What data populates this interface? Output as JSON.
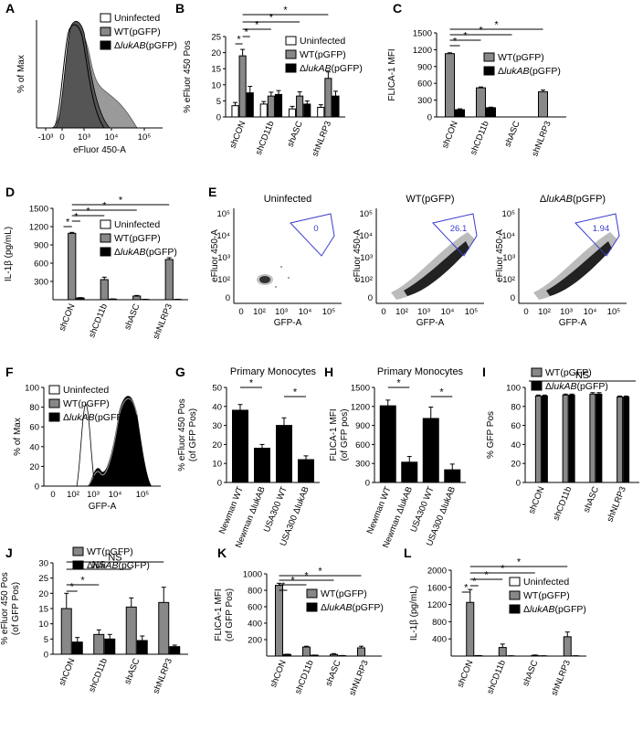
{
  "chart_data": [
    {
      "id": "A",
      "type": "area",
      "panel_label": "A",
      "xlabel": "eFluor 450-A",
      "ylabel": "% of Max",
      "x_ticks": [
        "-10³",
        "0",
        "10³",
        "10⁴",
        "10⁵"
      ],
      "series": [
        {
          "name": "Uninfected",
          "color": "#ffffff"
        },
        {
          "name": "WT(pGFP)",
          "color": "#888888"
        },
        {
          "name": "ΔlukAB(pGFP)",
          "color": "#000000"
        }
      ]
    },
    {
      "id": "B",
      "type": "bar",
      "panel_label": "B",
      "ylabel": "% eFluor 450 Pos",
      "ylim": [
        0,
        25
      ],
      "y_ticks": [
        0,
        5,
        10,
        15,
        20,
        25
      ],
      "categories": [
        "shCON",
        "shCD11b",
        "shASC",
        "shNLRP3"
      ],
      "series": [
        {
          "name": "Uninfected",
          "color": "#ffffff",
          "values": [
            3.5,
            4,
            2.5,
            3
          ],
          "err": [
            1,
            0.8,
            0.8,
            0.8
          ]
        },
        {
          "name": "WT(pGFP)",
          "color": "#888888",
          "values": [
            19,
            6.5,
            6.5,
            12
          ],
          "err": [
            2,
            1.2,
            1.3,
            2
          ]
        },
        {
          "name": "ΔlukAB(pGFP)",
          "color": "#000000",
          "values": [
            7.5,
            7,
            4,
            6.5
          ],
          "err": [
            2,
            1.2,
            1,
            1.5
          ]
        }
      ],
      "significance": [
        [
          "shCON:1",
          "shCON:0"
        ],
        [
          "shCON:1",
          "shCON:2"
        ],
        [
          "shCON:1",
          "shCD11b:1"
        ],
        [
          "shCON:1",
          "shASC:1"
        ],
        [
          "shCON:1",
          "shNLRP3:1"
        ]
      ]
    },
    {
      "id": "C",
      "type": "bar",
      "panel_label": "C",
      "ylabel": "FLICA-1 MFI",
      "ylim": [
        0,
        1500
      ],
      "y_ticks": [
        0,
        300,
        600,
        900,
        1200,
        1500
      ],
      "categories": [
        "shCON",
        "shCD11b",
        "shASC",
        "shNLRP3"
      ],
      "series": [
        {
          "name": "WT(pGFP)",
          "color": "#888888",
          "values": [
            1130,
            520,
            0,
            450
          ],
          "err": [
            15,
            15,
            0,
            30
          ]
        },
        {
          "name": "ΔlukAB(pGFP)",
          "color": "#000000",
          "values": [
            130,
            165,
            0,
            0
          ],
          "err": [
            15,
            10,
            0,
            0
          ]
        }
      ],
      "significance": [
        [
          "shCON:0",
          "shCON:1"
        ],
        [
          "shCON:0",
          "shCD11b:0"
        ],
        [
          "shCON:0",
          "shASC:0"
        ],
        [
          "shCON:0",
          "shNLRP3:0"
        ]
      ]
    },
    {
      "id": "D",
      "type": "bar",
      "panel_label": "D",
      "ylabel": "IL-1β (pg/mL)",
      "ylim": [
        0,
        1500
      ],
      "y_ticks": [
        300,
        600,
        900,
        1200,
        1500
      ],
      "categories": [
        "shCON",
        "shCD11b",
        "shASC",
        "shNLRP3"
      ],
      "series": [
        {
          "name": "Uninfected",
          "color": "#ffffff",
          "values": [
            0,
            0,
            0,
            0
          ],
          "err": [
            0,
            0,
            0,
            0
          ]
        },
        {
          "name": "WT(pGFP)",
          "color": "#888888",
          "values": [
            1090,
            330,
            60,
            660
          ],
          "err": [
            15,
            40,
            10,
            30
          ]
        },
        {
          "name": "ΔlukAB(pGFP)",
          "color": "#000000",
          "values": [
            30,
            10,
            5,
            5
          ],
          "err": [
            5,
            3,
            2,
            2
          ]
        }
      ],
      "significance": [
        [
          "shCON:1",
          "shCON:0"
        ],
        [
          "shCON:1",
          "shCON:2"
        ],
        [
          "shCON:1",
          "shCD11b:1"
        ],
        [
          "shCON:1",
          "shASC:1"
        ],
        [
          "shCON:1",
          "shNLRP3:1"
        ]
      ]
    },
    {
      "id": "E",
      "type": "heatmap",
      "panel_label": "E",
      "xlabel": "GFP-A",
      "ylabel": "eFluor 450-A",
      "x_ticks": [
        "0",
        "10²",
        "10³",
        "10⁴",
        "10⁵"
      ],
      "y_ticks": [
        "0",
        "10²",
        "10³",
        "10⁴",
        "10⁵"
      ],
      "plots": [
        {
          "title": "Uninfected",
          "gate_pct": "0"
        },
        {
          "title": "WT(pGFP)",
          "gate_pct": "26.1"
        },
        {
          "title": "ΔlukAB(pGFP)",
          "gate_pct": "1.94"
        }
      ]
    },
    {
      "id": "F",
      "type": "area",
      "panel_label": "F",
      "xlabel": "GFP-A",
      "ylabel": "% of Max",
      "x_ticks": [
        "0",
        "10²",
        "10³",
        "10⁴",
        "10⁵"
      ],
      "y_ticks": [
        "0",
        "20",
        "40",
        "60",
        "80",
        "100"
      ],
      "series": [
        {
          "name": "Uninfected",
          "color": "#ffffff"
        },
        {
          "name": "WT(pGFP)",
          "color": "#888888"
        },
        {
          "name": "ΔlukAB(pGFP)",
          "color": "#000000"
        }
      ]
    },
    {
      "id": "G",
      "type": "bar",
      "panel_label": "G",
      "title": "Primary Monocytes",
      "ylabel": "% eFluor 450 Pos\n(of GFP Pos)",
      "ylim": [
        0,
        50
      ],
      "y_ticks": [
        0,
        10,
        20,
        30,
        40,
        50
      ],
      "categories": [
        "Newman WT",
        "Newman ΔlukAB",
        "USA300 WT",
        "USA300 ΔlukAB"
      ],
      "series": [
        {
          "name": "",
          "color": "#000000",
          "values": [
            38,
            18,
            30,
            12
          ],
          "err": [
            3,
            2,
            4,
            2
          ]
        }
      ],
      "significance": [
        [
          "Newman WT:0",
          "Newman ΔlukAB:0"
        ],
        [
          "USA300 WT:0",
          "USA300 ΔlukAB:0"
        ]
      ]
    },
    {
      "id": "H",
      "type": "bar",
      "panel_label": "H",
      "title": "Primary Monocytes",
      "ylabel": "FLICA-1 MFI\n(of GFP pos)",
      "ylim": [
        0,
        1500
      ],
      "y_ticks": [
        0,
        300,
        600,
        900,
        1200,
        1500
      ],
      "categories": [
        "Newman WT",
        "Newman ΔlukAB",
        "USA300 WT",
        "USA300 ΔlukAB"
      ],
      "series": [
        {
          "name": "",
          "color": "#000000",
          "values": [
            1210,
            320,
            1010,
            200
          ],
          "err": [
            90,
            90,
            180,
            90
          ]
        }
      ],
      "significance": [
        [
          "Newman WT:0",
          "Newman ΔlukAB:0"
        ],
        [
          "USA300 WT:0",
          "USA300 ΔlukAB:0"
        ]
      ]
    },
    {
      "id": "I",
      "type": "bar",
      "panel_label": "I",
      "ylabel": "% GFP Pos",
      "ylim": [
        0,
        100
      ],
      "y_ticks": [
        0,
        20,
        40,
        60,
        80,
        100
      ],
      "categories": [
        "shCON",
        "shCD11b",
        "shASC",
        "shNLRP3"
      ],
      "series": [
        {
          "name": "WT(pGFP)",
          "color": "#888888",
          "values": [
            91,
            92,
            93,
            90
          ],
          "err": [
            1,
            1,
            1.5,
            1
          ]
        },
        {
          "name": "ΔlukAB(pGFP)",
          "color": "#000000",
          "values": [
            91,
            92,
            93,
            90
          ],
          "err": [
            1,
            1,
            1.5,
            1
          ]
        }
      ],
      "significance_text": "NS"
    },
    {
      "id": "J",
      "type": "bar",
      "panel_label": "J",
      "ylabel": "% eFluor 450 Pos\n(of GFP Pos)",
      "ylim": [
        0,
        30
      ],
      "y_ticks": [
        0,
        5,
        10,
        15,
        20,
        25,
        30
      ],
      "categories": [
        "shCON",
        "shCD11b",
        "shASC",
        "shNLRP3"
      ],
      "series": [
        {
          "name": "WT(pGFP)",
          "color": "#888888",
          "values": [
            15,
            6.5,
            15.5,
            17
          ],
          "err": [
            5,
            1.5,
            3,
            5
          ]
        },
        {
          "name": "ΔlukAB(pGFP)",
          "color": "#000000",
          "values": [
            4,
            5,
            4.5,
            2.5
          ],
          "err": [
            1.5,
            1.5,
            1.5,
            0.5
          ]
        }
      ],
      "significance": [
        [
          "shCON:0",
          "shCON:1",
          "*"
        ],
        [
          "shCON:0",
          "shCD11b:0",
          "*"
        ],
        [
          "shCON:0",
          "shASC:0",
          "NS"
        ],
        [
          "shCON:0",
          "shNLRP3:0",
          "NS"
        ]
      ]
    },
    {
      "id": "K",
      "type": "bar",
      "panel_label": "K",
      "ylabel": "FLICA-1 MFI\n(of GFP Pos)",
      "ylim": [
        0,
        1000
      ],
      "y_ticks": [
        200,
        400,
        600,
        800,
        1000
      ],
      "categories": [
        "shCON",
        "shCD11b",
        "shASC",
        "shNLRP3"
      ],
      "series": [
        {
          "name": "WT(pGFP)",
          "color": "#888888",
          "values": [
            860,
            110,
            20,
            100
          ],
          "err": [
            25,
            10,
            10,
            20
          ]
        },
        {
          "name": "ΔlukAB(pGFP)",
          "color": "#000000",
          "values": [
            20,
            10,
            5,
            0
          ],
          "err": [
            3,
            2,
            2,
            0
          ]
        }
      ],
      "significance": [
        [
          "shCON:0",
          "shCON:1"
        ],
        [
          "shCON:0",
          "shCD11b:0"
        ],
        [
          "shCON:0",
          "shASC:0"
        ],
        [
          "shCON:0",
          "shNLRP3:0"
        ]
      ]
    },
    {
      "id": "L",
      "type": "bar",
      "panel_label": "L",
      "ylabel": "IL-1β (pg/mL)",
      "ylim": [
        0,
        2000
      ],
      "y_ticks": [
        400,
        800,
        1200,
        1600,
        2000
      ],
      "categories": [
        "shCON",
        "shCD11b",
        "shASC",
        "shNLRP3"
      ],
      "series": [
        {
          "name": "Uninfected",
          "color": "#ffffff",
          "values": [
            0,
            0,
            0,
            0
          ],
          "err": [
            0,
            0,
            0,
            0
          ]
        },
        {
          "name": "WT(pGFP)",
          "color": "#888888",
          "values": [
            1250,
            200,
            15,
            450
          ],
          "err": [
            300,
            80,
            10,
            110
          ]
        },
        {
          "name": "ΔlukAB(pGFP)",
          "color": "#000000",
          "values": [
            10,
            5,
            5,
            5
          ],
          "err": [
            3,
            2,
            2,
            2
          ]
        }
      ],
      "significance": [
        [
          "shCON:1",
          "shCON:0"
        ],
        [
          "shCON:1",
          "shCON:2"
        ],
        [
          "shCON:1",
          "shCD11b:1"
        ],
        [
          "shCON:1",
          "shASC:1"
        ],
        [
          "shCON:1",
          "shNLRP3:1"
        ]
      ]
    }
  ]
}
